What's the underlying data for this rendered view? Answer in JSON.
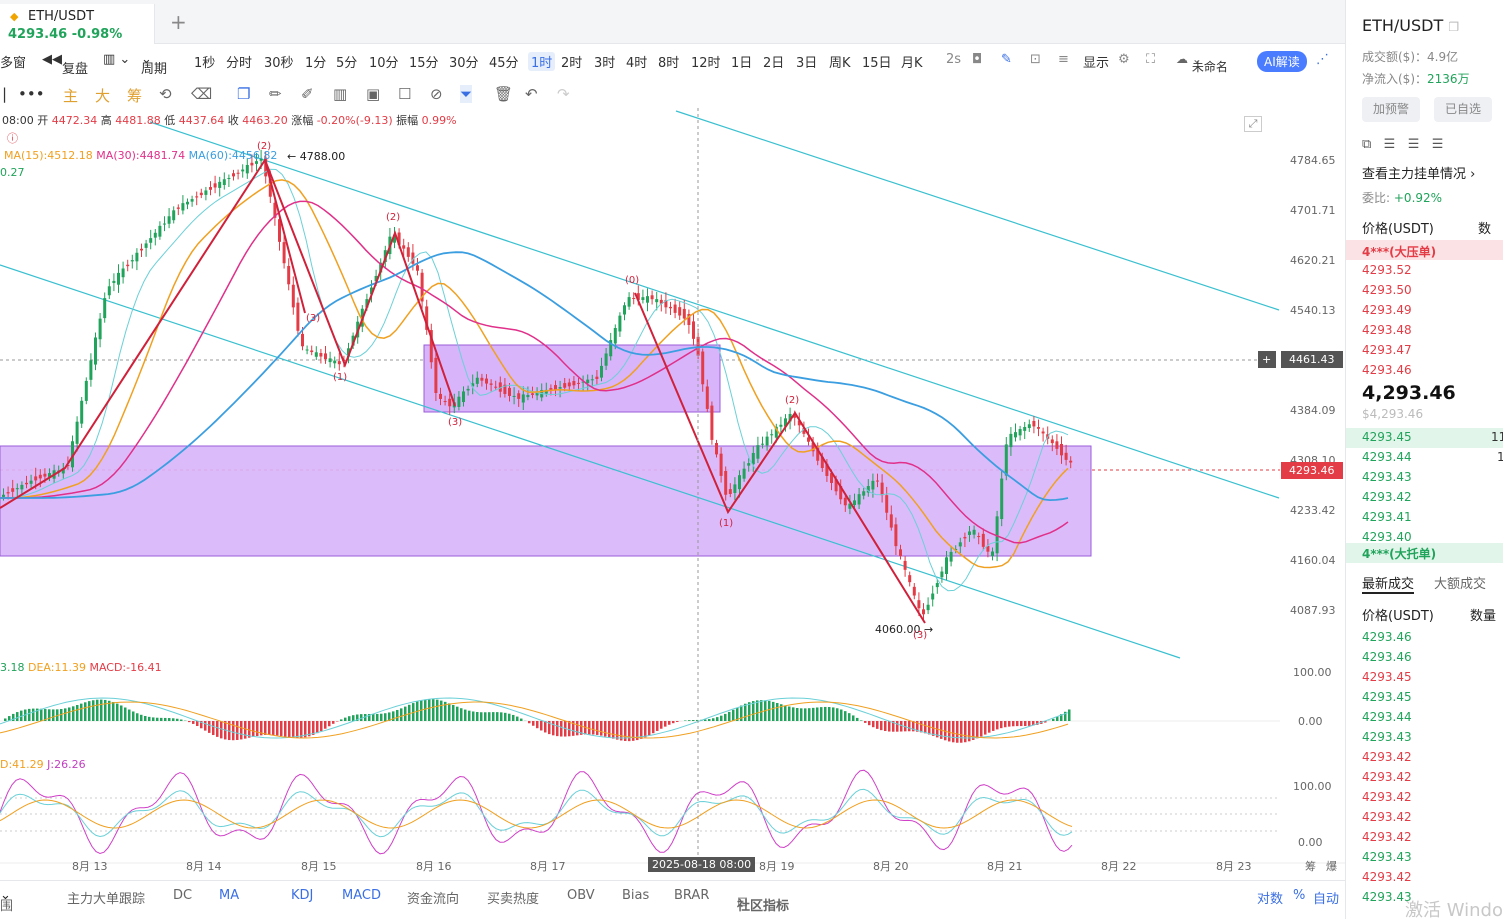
{
  "tab": {
    "symbol": "ETH/USDT",
    "price": "4293.46",
    "change": "-0.98%"
  },
  "toolbar": {
    "multi_window": "多窗",
    "replay": "复盘",
    "period": "周期",
    "intervals": [
      "1秒",
      "分时",
      "30秒",
      "1分",
      "5分",
      "10分",
      "15分",
      "30分",
      "45分",
      "1时",
      "2时",
      "3时",
      "4时",
      "8时",
      "12时",
      "1日",
      "2日",
      "3日",
      "周K",
      "15日",
      "月K"
    ],
    "active_interval": "1时",
    "interval_2s": "2s",
    "display": "显示",
    "unnamed": "未命名",
    "ai": "AI解读"
  },
  "toolbar2": {
    "labels": [
      "主",
      "大",
      "筹"
    ]
  },
  "ohlc": {
    "time": "08:00",
    "open_label": "开",
    "open": "4472.34",
    "high_label": "高",
    "high": "4481.88",
    "low_label": "低",
    "low": "4437.64",
    "close_label": "收",
    "close": "4463.20",
    "chg_label": "涨幅",
    "chg": "-0.20%(-9.13)",
    "amp_label": "振幅",
    "amp": "0.99%"
  },
  "ma": {
    "ma15": "MA(15):4512.18",
    "ma30": "MA(30):4481.74",
    "ma60": "MA(60):4456.82",
    "extra": "0.27"
  },
  "annotations": {
    "high": "4788.00",
    "low": "4060.00",
    "w0": "(0)",
    "w1": "(1)",
    "w2": "(2)",
    "w3": "(3)",
    "w1b": "(1)",
    "w2b": "(2)",
    "w3b": "(3)",
    "w3c": "(3)",
    "w1c": "(1)",
    "w2c": "(2)",
    "w3d": "(3)"
  },
  "price_axis": [
    "4784.65",
    "4701.71",
    "4620.21",
    "4540.13",
    "4384.09",
    "4308.10",
    "4233.42",
    "4160.04",
    "4087.93"
  ],
  "crosshair_price": "4461.43",
  "last_price": "4293.46",
  "macd": {
    "dif": "3.18",
    "dea": "DEA:11.39",
    "macd": "MACD:-16.41",
    "axis": [
      "100.00",
      "0.00"
    ]
  },
  "kdj": {
    "d": "D:41.29",
    "j": "J:26.26",
    "axis": [
      "100.00",
      "0.00"
    ]
  },
  "dates": [
    "8月 13",
    "8月 14",
    "8月 15",
    "8月 16",
    "8月 17",
    "8月 19",
    "8月 20",
    "8月 21",
    "8月 22",
    "8月 23"
  ],
  "crosshair_date": "2025-08-18 08:00",
  "date_right": [
    "筹",
    "爆"
  ],
  "bottom": {
    "tabs": [
      "围",
      "主力大单跟踪",
      "DC",
      "MA",
      "KDJ",
      "MACD",
      "资金流向",
      "买卖热度",
      "OBV",
      "Bias",
      "BRAR",
      "社区指标"
    ],
    "right": [
      "对数",
      "%",
      "自动"
    ]
  },
  "side": {
    "title": "ETH/USDT",
    "turnover": "成交额($)：4.9亿",
    "netflow_label": "净流入($)：",
    "netflow": "2136万",
    "alert": "加预警",
    "fav": "已自选",
    "view_orders": "查看主力挂单情况",
    "ratio_label": "委比:",
    "ratio": "+0.92%",
    "price_col": "价格(USDT)",
    "qty_col": "数量",
    "sell_big": "4***(大压单)",
    "asks": [
      "4293.52",
      "4293.50",
      "4293.49",
      "4293.48",
      "4293.47",
      "4293.46"
    ],
    "mid": "4,293.46",
    "mid_sub": "$4,293.46",
    "bids": [
      "4293.45",
      "4293.44",
      "4293.43",
      "4293.42",
      "4293.41",
      "4293.40"
    ],
    "bid_qty": [
      "11",
      "1"
    ],
    "buy_big": "4***(大托单)",
    "trade_tab1": "最新成交",
    "trade_tab2": "大额成交",
    "trades": [
      [
        "4293.46",
        "g"
      ],
      [
        "4293.46",
        "g"
      ],
      [
        "4293.45",
        "r"
      ],
      [
        "4293.45",
        "g"
      ],
      [
        "4293.44",
        "g"
      ],
      [
        "4293.43",
        "g"
      ],
      [
        "4293.42",
        "r"
      ],
      [
        "4293.42",
        "r"
      ],
      [
        "4293.42",
        "r"
      ],
      [
        "4293.42",
        "r"
      ],
      [
        "4293.42",
        "r"
      ],
      [
        "4293.43",
        "g"
      ],
      [
        "4293.42",
        "r"
      ],
      [
        "4293.43",
        "g"
      ]
    ]
  },
  "watermark": "激活 Windo",
  "colors": {
    "up": "#20a35a",
    "down": "#e33c46",
    "box": "#d8b4fa",
    "channel": "#39c0d0",
    "wave": "#d0213a",
    "ma15": "#f0a020",
    "ma30": "#e0308a",
    "ma60": "#3b9ee0"
  }
}
